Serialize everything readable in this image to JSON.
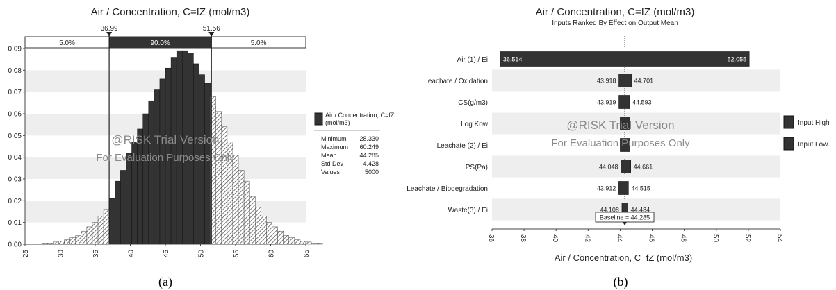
{
  "figure": {
    "captions": [
      "(a)",
      "(b)"
    ]
  },
  "watermark": {
    "line1": "@RISK Trial Version",
    "line2": "For Evaluation Purposes Only"
  },
  "colors": {
    "bar": "#333333",
    "bar_edge": "#111111",
    "hatch": "#555555",
    "band": "#eeeeee",
    "axis": "#444444",
    "grid": "#dddddd"
  },
  "chart_data": [
    {
      "type": "bar",
      "title": "Air / Concentration, C=fZ (mol/m3)",
      "xlim": [
        25,
        65
      ],
      "ylim": [
        0,
        0.09
      ],
      "xticks": [
        "25",
        "30",
        "35",
        "40",
        "45",
        "50",
        "55",
        "60",
        "65"
      ],
      "yticks": [
        "0.00",
        "0.01",
        "0.02",
        "0.03",
        "0.04",
        "0.05",
        "0.06",
        "0.07",
        "0.08",
        "0.09"
      ],
      "bin_width": 0.8,
      "bin_start": 27.4,
      "values": [
        0.0005,
        0.0005,
        0.001,
        0.0015,
        0.002,
        0.003,
        0.004,
        0.006,
        0.008,
        0.01,
        0.013,
        0.016,
        0.021,
        0.029,
        0.034,
        0.042,
        0.047,
        0.053,
        0.06,
        0.066,
        0.071,
        0.076,
        0.081,
        0.086,
        0.089,
        0.089,
        0.088,
        0.083,
        0.078,
        0.074,
        0.068,
        0.061,
        0.054,
        0.047,
        0.041,
        0.034,
        0.029,
        0.022,
        0.017,
        0.013,
        0.01,
        0.008,
        0.006,
        0.004,
        0.003,
        0.002,
        0.0015,
        0.001,
        0.0005,
        0.0005
      ],
      "delimiters": {
        "left": 36.99,
        "right": 51.56,
        "left_label": "36.99",
        "right_label": "51.56"
      },
      "bands": [
        "5.0%",
        "90.0%",
        "5.0%"
      ],
      "legend": {
        "series": "Air / Concentration, C=fZ (mol/m3)",
        "stats": [
          {
            "label": "Minimum",
            "value": "28.330"
          },
          {
            "label": "Maximum",
            "value": "60.249"
          },
          {
            "label": "Mean",
            "value": "44.285"
          },
          {
            "label": "Std Dev",
            "value": "4.428"
          },
          {
            "label": "Values",
            "value": "5000"
          }
        ]
      }
    },
    {
      "type": "bar",
      "title": "Air / Concentration, C=fZ (mol/m3)",
      "subtitle": "Inputs Ranked By Effect on Output Mean",
      "xlabel": "Air / Concentration, C=fZ (mol/m3)",
      "xlim": [
        36,
        54
      ],
      "xticks": [
        "36",
        "38",
        "40",
        "42",
        "44",
        "46",
        "48",
        "50",
        "52",
        "54"
      ],
      "baseline": 44.285,
      "baseline_label": "Baseline = 44.285",
      "categories": [
        "Air (1) / Ei",
        "Leachate / Oxidation",
        "CS(g/m3)",
        "Log Kow",
        "Leachate (2) / Ei",
        "PS(Pa)",
        "Leachate / Biodegradation",
        "Waste(3) / Ei"
      ],
      "low": [
        36.514,
        43.918,
        43.919,
        44.0,
        44.0,
        44.048,
        43.912,
        44.108
      ],
      "high": [
        52.055,
        44.701,
        44.593,
        44.6,
        44.6,
        44.661,
        44.515,
        44.484
      ],
      "low_labels": [
        "36.514",
        "43.918",
        "43.919",
        "",
        "",
        "44.048",
        "43.912",
        "44.108"
      ],
      "high_labels": [
        "52.055",
        "44.701",
        "44.593",
        "",
        "",
        "44.661",
        "44.515",
        "44.484"
      ],
      "legend": [
        "Input High",
        "Input Low"
      ]
    }
  ]
}
